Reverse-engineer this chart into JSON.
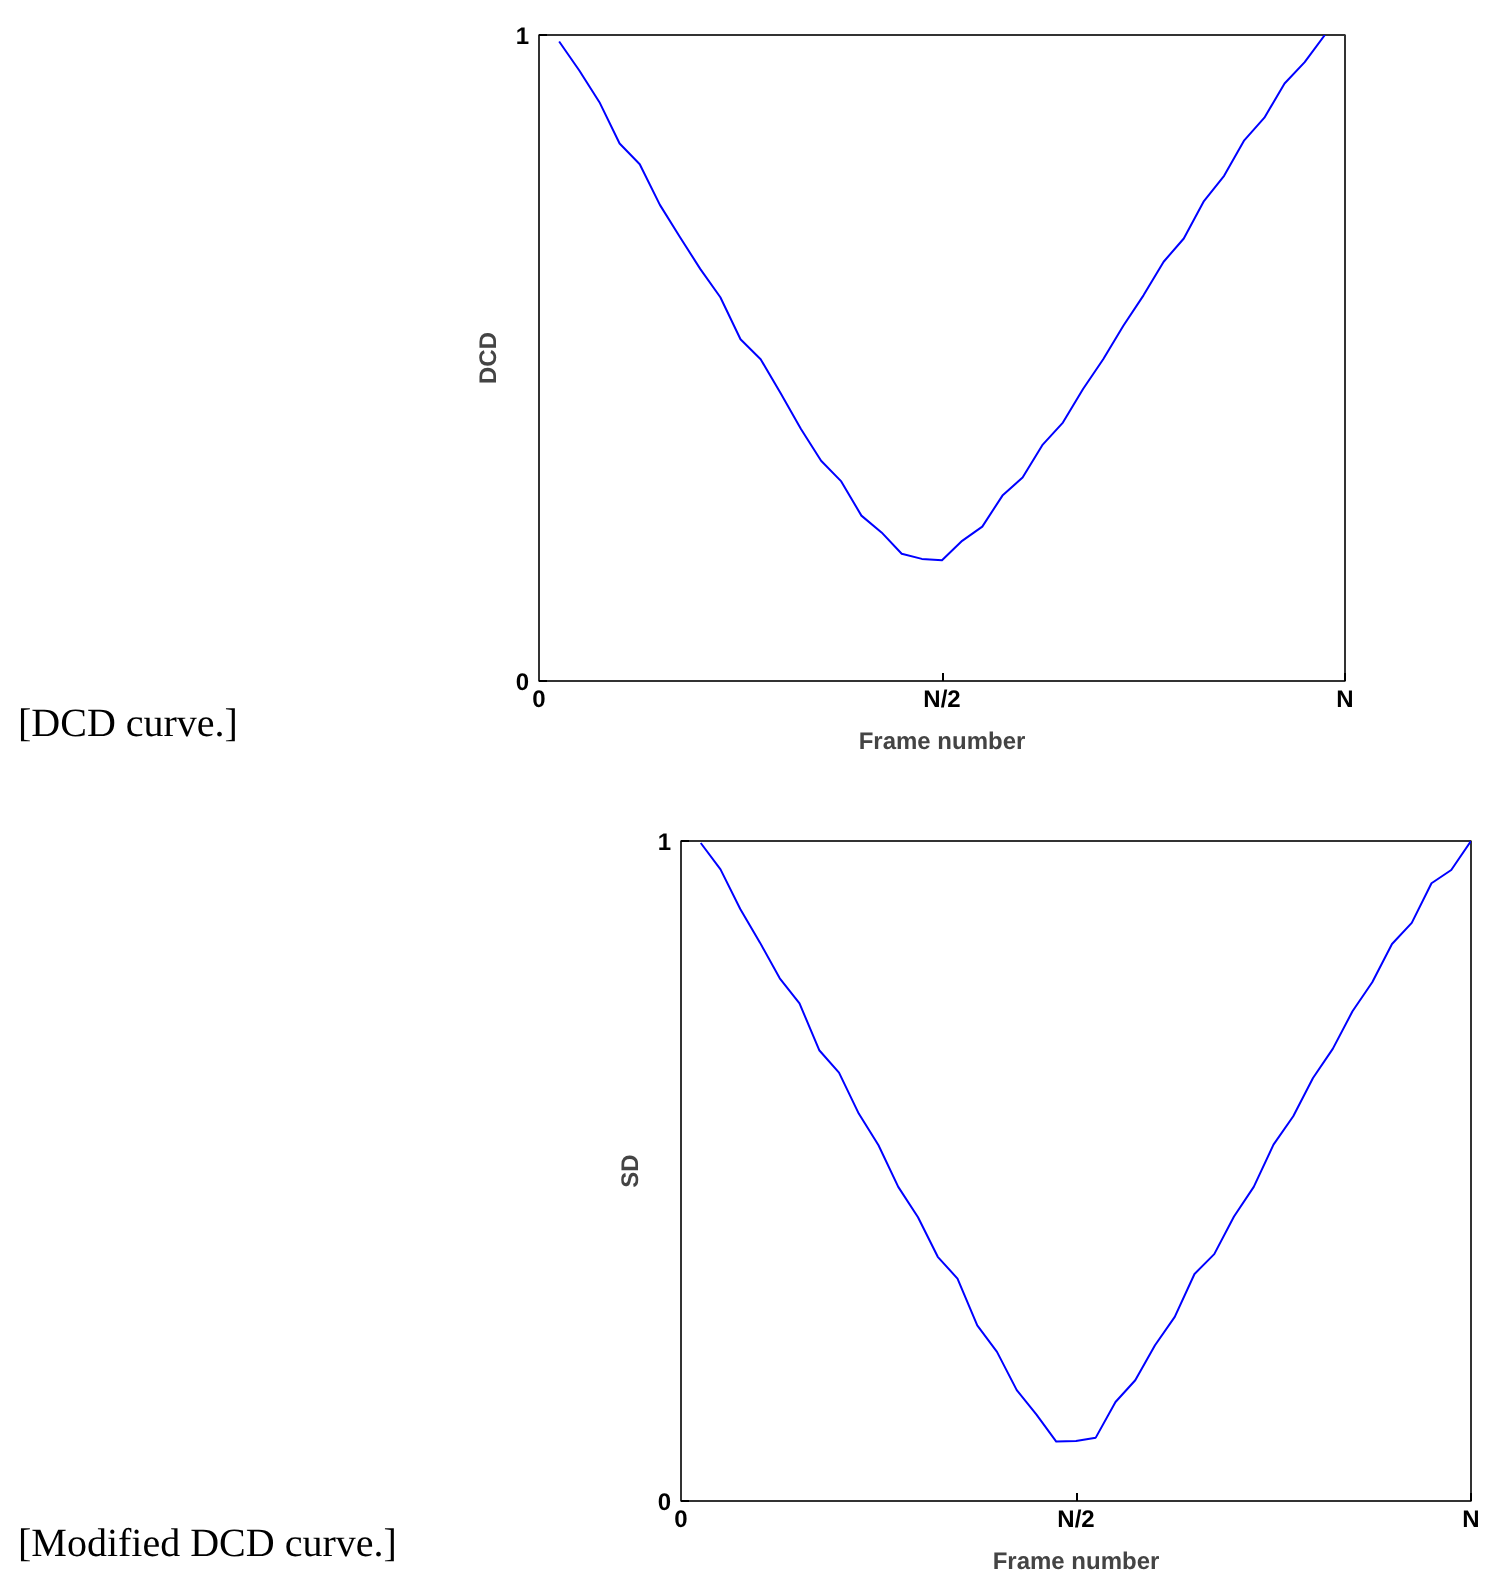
{
  "chart_data": [
    {
      "type": "line",
      "xlabel": "Frame number",
      "ylabel": "DCD",
      "annotations": [
        "[DCD curve.]"
      ],
      "ylim": [
        0,
        1
      ],
      "yticks": [
        0,
        1
      ],
      "grid": false,
      "categories": [
        "0",
        null,
        null,
        null,
        null,
        null,
        null,
        null,
        null,
        null,
        null,
        null,
        null,
        null,
        null,
        null,
        null,
        null,
        null,
        null,
        "N/2",
        null,
        null,
        null,
        null,
        null,
        null,
        null,
        null,
        null,
        null,
        null,
        null,
        null,
        null,
        null,
        null,
        null,
        null,
        null,
        "N"
      ],
      "series": [
        {
          "color": "#0000ff",
          "values": [
            null,
            0.99,
            0.945,
            0.896,
            0.832,
            0.8,
            0.737,
            0.687,
            0.638,
            0.594,
            0.529,
            0.498,
            0.445,
            0.39,
            0.341,
            0.309,
            0.256,
            0.23,
            0.197,
            0.189,
            0.187,
            0.217,
            0.239,
            0.287,
            0.315,
            0.366,
            0.4,
            0.452,
            0.498,
            0.55,
            0.597,
            0.649,
            0.685,
            0.743,
            0.782,
            0.837,
            0.872,
            0.925,
            0.958,
            1.0,
            null
          ]
        }
      ]
    },
    {
      "type": "line",
      "xlabel": "Frame number",
      "ylabel": "SD",
      "annotations": [
        "[Modified DCD curve.]"
      ],
      "ylim": [
        0,
        1
      ],
      "yticks": [
        0,
        1
      ],
      "grid": false,
      "categories": [
        "0",
        null,
        null,
        null,
        null,
        null,
        null,
        null,
        null,
        null,
        null,
        null,
        null,
        null,
        null,
        null,
        null,
        null,
        null,
        null,
        "N/2",
        null,
        null,
        null,
        null,
        null,
        null,
        null,
        null,
        null,
        null,
        null,
        null,
        null,
        null,
        null,
        null,
        null,
        null,
        null,
        "N"
      ],
      "series": [
        {
          "color": "#0000ff",
          "values": [
            null,
            0.997,
            0.957,
            0.897,
            0.846,
            0.792,
            0.754,
            0.683,
            0.649,
            0.587,
            0.539,
            0.476,
            0.43,
            0.37,
            0.337,
            0.266,
            0.226,
            0.168,
            0.131,
            0.09,
            0.091,
            0.096,
            0.15,
            0.183,
            0.236,
            0.279,
            0.344,
            0.374,
            0.431,
            0.476,
            0.54,
            0.583,
            0.641,
            0.685,
            0.742,
            0.786,
            0.844,
            0.876,
            0.936,
            0.956,
            1.0
          ]
        }
      ]
    }
  ]
}
